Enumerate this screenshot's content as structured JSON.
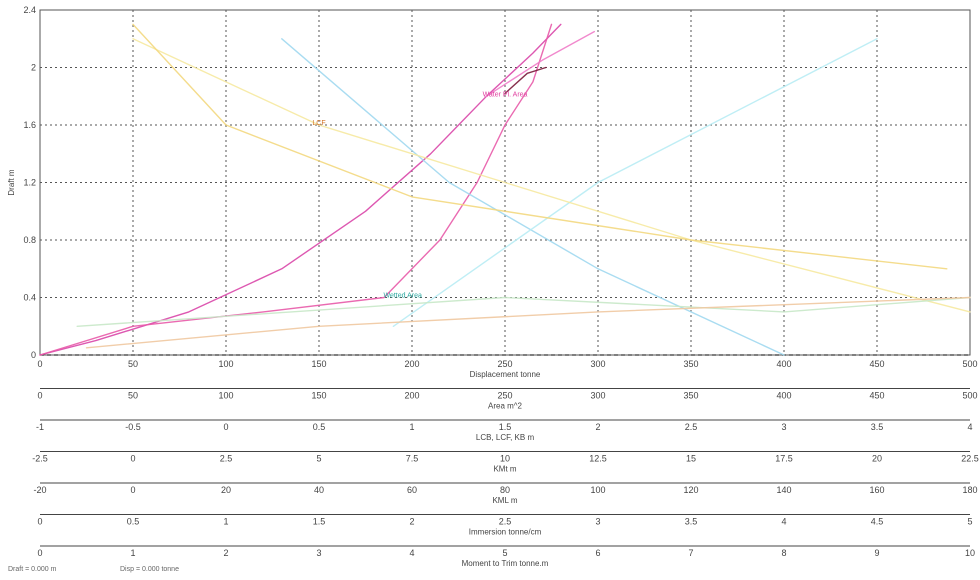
{
  "chart_data": {
    "type": "line",
    "ylabel": "Draft m",
    "ylim": [
      0,
      2.4
    ],
    "yticks": [
      "0",
      "0.4",
      "0.8",
      "1.2",
      "1.6",
      "2",
      "2.4"
    ],
    "grid": true,
    "x_axes": [
      {
        "label": "Displacement tonne",
        "ticks": [
          "0",
          "50",
          "100",
          "150",
          "200",
          "250",
          "300",
          "350",
          "400",
          "450",
          "500"
        ]
      },
      {
        "label": "Area m^2",
        "ticks": [
          "0",
          "50",
          "100",
          "150",
          "200",
          "250",
          "300",
          "350",
          "400",
          "450",
          "500"
        ]
      },
      {
        "label": "LCB, LCF, KB m",
        "ticks": [
          "-1",
          "-0.5",
          "0",
          "0.5",
          "1",
          "1.5",
          "2",
          "2.5",
          "3",
          "3.5",
          "4"
        ]
      },
      {
        "label": "KMt m",
        "ticks": [
          "-2.5",
          "0",
          "2.5",
          "5",
          "7.5",
          "10",
          "12.5",
          "15",
          "17.5",
          "20",
          "22.5"
        ]
      },
      {
        "label": "KML m",
        "ticks": [
          "-20",
          "0",
          "20",
          "40",
          "60",
          "80",
          "100",
          "120",
          "140",
          "160",
          "180"
        ]
      },
      {
        "label": "Immersion tonne/cm",
        "ticks": [
          "0",
          "0.5",
          "1",
          "1.5",
          "2",
          "2.5",
          "3",
          "3.5",
          "4",
          "4.5",
          "5"
        ]
      },
      {
        "label": "Moment to Trim tonne.m",
        "ticks": [
          "0",
          "1",
          "2",
          "3",
          "4",
          "5",
          "6",
          "7",
          "8",
          "9",
          "10"
        ]
      }
    ],
    "annotations": [
      {
        "text": "Water Pl. Area",
        "color": "#e040a0",
        "x": 250,
        "y": 1.8
      },
      {
        "text": "Wetted Area",
        "color": "#2aa8a0",
        "x": 195,
        "y": 0.4
      },
      {
        "text": "LCF",
        "color": "#d07020",
        "x": 150,
        "y": 1.6
      }
    ],
    "series": [
      {
        "color": "#d946a8",
        "x_units": "Displacement tonne",
        "x": [
          0,
          30,
          80,
          130,
          175,
          210,
          240,
          265,
          280
        ],
        "y": [
          0,
          0.1,
          0.3,
          0.6,
          1.0,
          1.4,
          1.8,
          2.1,
          2.3
        ]
      },
      {
        "color": "#e85aa8",
        "x_units": "Area m^2",
        "x": [
          0,
          50,
          120,
          185,
          215,
          235,
          250,
          265,
          275
        ],
        "y": [
          0,
          0.2,
          0.3,
          0.4,
          0.8,
          1.2,
          1.6,
          1.9,
          2.3
        ]
      },
      {
        "color": "#f07cc8",
        "x_units": "Area m^2",
        "x": [
          240,
          270,
          298
        ],
        "y": [
          1.8,
          2.05,
          2.25
        ]
      },
      {
        "color": "#7a1a3a",
        "x_units": "Displacement tonne",
        "x": [
          250,
          262,
          272
        ],
        "y": [
          1.82,
          1.96,
          2.0
        ]
      },
      {
        "color": "#a0d8f0",
        "x_units": "LCB, LCF, KB m",
        "x": [
          0.3,
          1.2,
          2.0,
          3.0
        ],
        "y": [
          2.2,
          1.2,
          0.6,
          0
        ]
      },
      {
        "color": "#b8ecf4",
        "x_units": "LCB, LCF, KB m",
        "x": [
          0.9,
          2.0,
          3.5
        ],
        "y": [
          0.2,
          1.2,
          2.2
        ]
      },
      {
        "color": "#f6e9a0",
        "x_units": "KMt m",
        "x": [
          22.5,
          15,
          10,
          5,
          0
        ],
        "y": [
          0.3,
          0.8,
          1.2,
          1.6,
          2.2
        ]
      },
      {
        "color": "#f3d880",
        "x_units": "KML m",
        "x": [
          175,
          120,
          60,
          20,
          0
        ],
        "y": [
          0.6,
          0.8,
          1.1,
          1.6,
          2.3
        ]
      },
      {
        "color": "#c8e8c8",
        "x_units": "Immersion tonne/cm",
        "x": [
          0.2,
          2.5,
          4.0,
          5.0
        ],
        "y": [
          0.2,
          0.4,
          0.3,
          0.4
        ]
      },
      {
        "color": "#f0c8a0",
        "x_units": "Moment to Trim tonne.m",
        "x": [
          0.5,
          3,
          6,
          10
        ],
        "y": [
          0.05,
          0.2,
          0.3,
          0.4
        ]
      }
    ]
  },
  "status_bar": {
    "draft": "Draft = 0.000 m",
    "disp": "Disp = 0.000 tonne"
  }
}
